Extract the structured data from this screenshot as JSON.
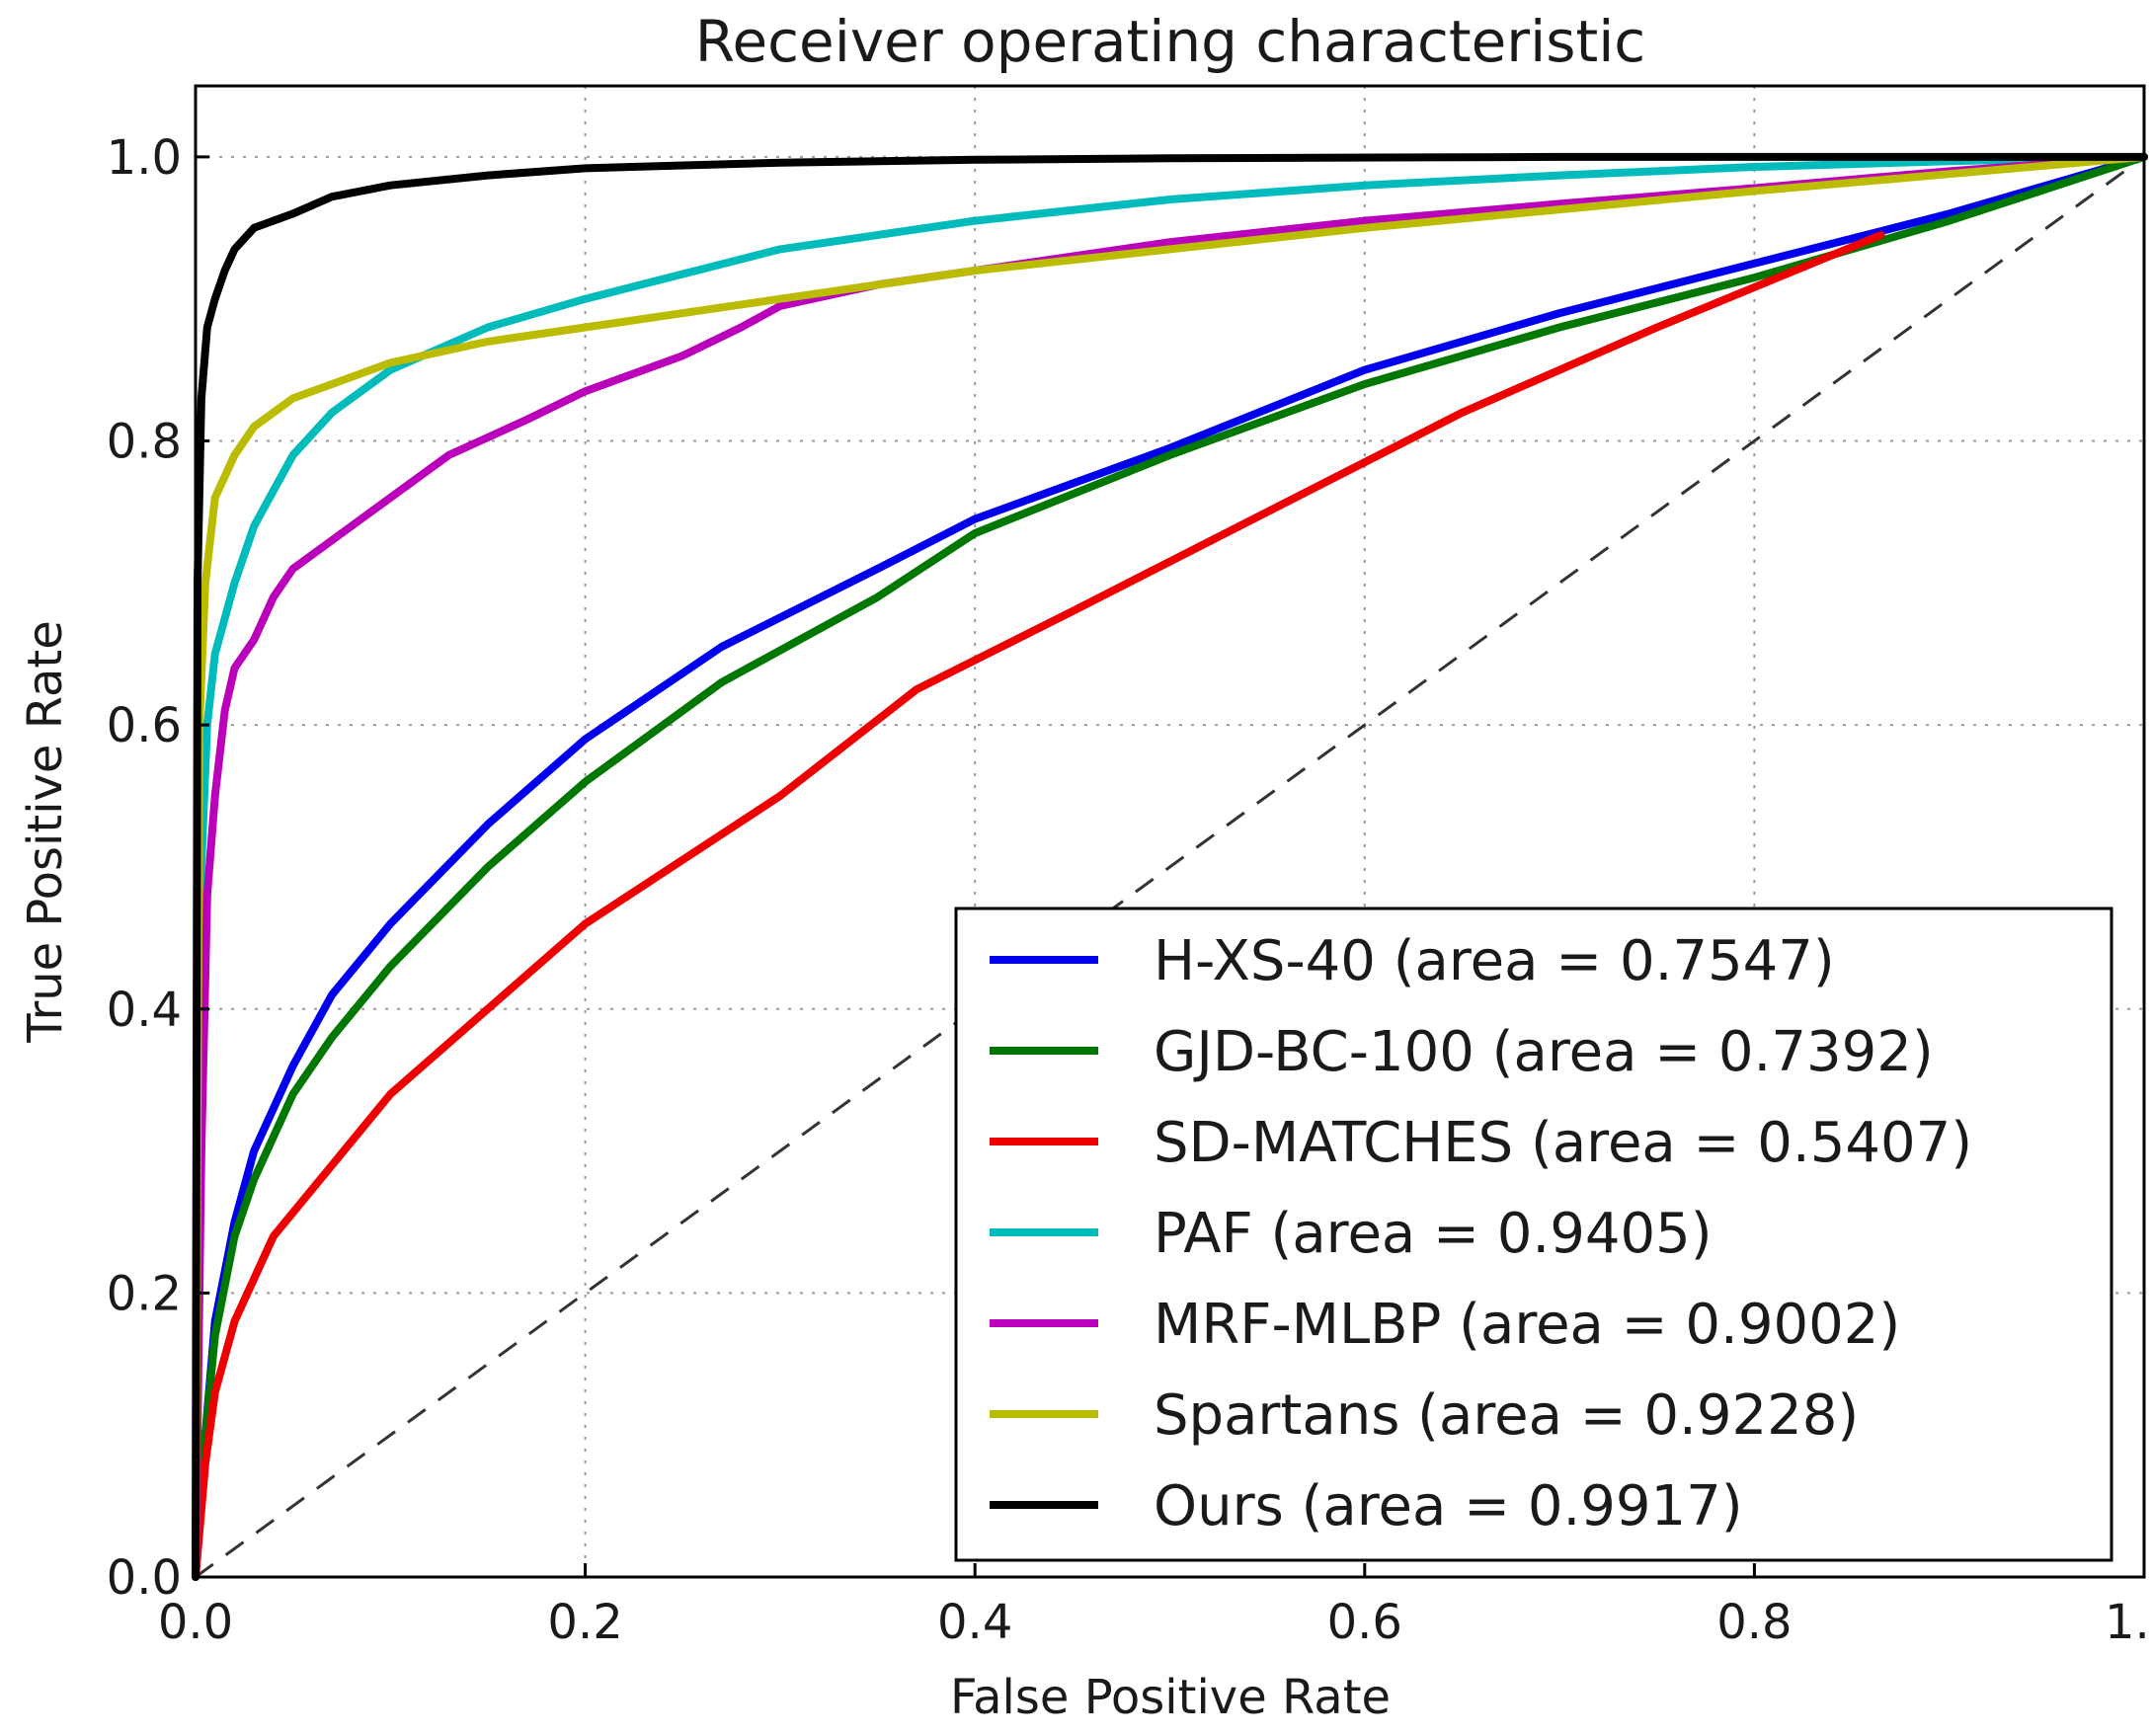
{
  "chart_data": {
    "type": "line",
    "title": "Receiver operating characteristic",
    "xlabel": "False Positive Rate",
    "ylabel": "True Positive Rate",
    "xlim": [
      0,
      1
    ],
    "ylim": [
      0,
      1.05
    ],
    "xticks": [
      0.0,
      0.2,
      0.4,
      0.6,
      0.8,
      1.0
    ],
    "xtick_labels": [
      "0.0",
      "0.2",
      "0.4",
      "0.6",
      "0.8",
      "1."
    ],
    "yticks": [
      0.0,
      0.2,
      0.4,
      0.6,
      0.8,
      1.0
    ],
    "ytick_labels": [
      "0.0",
      "0.2",
      "0.4",
      "0.6",
      "0.8",
      "1.0"
    ],
    "grid": true,
    "legend_position": "lower-right",
    "diagonal_reference": {
      "x": [
        0,
        1
      ],
      "y": [
        0,
        1
      ],
      "style": "dashed",
      "color": "#333333"
    },
    "series": [
      {
        "name": "H-XS-40 (area = 0.7547)",
        "color": "#0000ee",
        "x": [
          0,
          0.005,
          0.01,
          0.02,
          0.03,
          0.05,
          0.07,
          0.1,
          0.15,
          0.2,
          0.27,
          0.35,
          0.4,
          0.5,
          0.6,
          0.7,
          0.8,
          0.9,
          1.0
        ],
        "y": [
          0,
          0.1,
          0.18,
          0.25,
          0.3,
          0.36,
          0.41,
          0.46,
          0.53,
          0.59,
          0.655,
          0.71,
          0.745,
          0.795,
          0.85,
          0.89,
          0.925,
          0.96,
          1.0
        ]
      },
      {
        "name": "GJD-BC-100 (area = 0.7392)",
        "color": "#007700",
        "x": [
          0,
          0.005,
          0.01,
          0.02,
          0.03,
          0.05,
          0.07,
          0.1,
          0.15,
          0.2,
          0.27,
          0.35,
          0.4,
          0.5,
          0.6,
          0.7,
          0.8,
          0.9,
          1.0
        ],
        "y": [
          0,
          0.1,
          0.17,
          0.24,
          0.28,
          0.34,
          0.38,
          0.43,
          0.5,
          0.56,
          0.63,
          0.69,
          0.735,
          0.79,
          0.84,
          0.88,
          0.915,
          0.955,
          1.0
        ]
      },
      {
        "name": "SD-MATCHES (area = 0.5407)",
        "color": "#ee0000",
        "x": [
          0,
          0.005,
          0.01,
          0.02,
          0.04,
          0.07,
          0.1,
          0.15,
          0.2,
          0.3,
          0.37,
          0.45,
          0.55,
          0.65,
          0.75,
          0.865
        ],
        "y": [
          0,
          0.08,
          0.13,
          0.18,
          0.24,
          0.29,
          0.34,
          0.4,
          0.46,
          0.55,
          0.625,
          0.68,
          0.75,
          0.82,
          0.88,
          0.945
        ]
      },
      {
        "name": "PAF (area = 0.9405)",
        "color": "#00bbbb",
        "x": [
          0,
          0.003,
          0.006,
          0.01,
          0.02,
          0.03,
          0.05,
          0.07,
          0.1,
          0.15,
          0.2,
          0.3,
          0.4,
          0.5,
          0.6,
          0.7,
          0.8,
          0.9,
          1.0
        ],
        "y": [
          0,
          0.5,
          0.6,
          0.65,
          0.7,
          0.74,
          0.79,
          0.82,
          0.85,
          0.88,
          0.9,
          0.935,
          0.955,
          0.97,
          0.98,
          0.987,
          0.993,
          0.997,
          1.0
        ]
      },
      {
        "name": "MRF-MLBP (area = 0.9002)",
        "color": "#bb00bb",
        "x": [
          0,
          0.003,
          0.006,
          0.01,
          0.015,
          0.02,
          0.03,
          0.04,
          0.05,
          0.07,
          0.1,
          0.13,
          0.17,
          0.2,
          0.25,
          0.28,
          0.3,
          0.35,
          0.4,
          0.5,
          0.6,
          0.7,
          0.8,
          0.9,
          1.0
        ],
        "y": [
          0,
          0.3,
          0.48,
          0.55,
          0.61,
          0.64,
          0.66,
          0.69,
          0.71,
          0.73,
          0.76,
          0.79,
          0.815,
          0.835,
          0.86,
          0.88,
          0.895,
          0.91,
          0.92,
          0.94,
          0.955,
          0.967,
          0.978,
          0.99,
          1.0
        ]
      },
      {
        "name": "Spartans (area = 0.9228)",
        "color": "#bbbb00",
        "x": [
          0,
          0.002,
          0.005,
          0.01,
          0.02,
          0.03,
          0.05,
          0.07,
          0.1,
          0.15,
          0.2,
          0.3,
          0.4,
          0.5,
          0.6,
          0.7,
          0.8,
          0.9,
          1.0
        ],
        "y": [
          0,
          0.6,
          0.7,
          0.76,
          0.79,
          0.81,
          0.83,
          0.84,
          0.855,
          0.87,
          0.88,
          0.9,
          0.92,
          0.935,
          0.95,
          0.963,
          0.976,
          0.988,
          1.0
        ]
      },
      {
        "name": "Ours (area = 0.9917)",
        "color": "#000000",
        "x": [
          0,
          0.001,
          0.003,
          0.006,
          0.01,
          0.015,
          0.02,
          0.03,
          0.05,
          0.07,
          0.1,
          0.15,
          0.2,
          0.3,
          0.4,
          0.5,
          0.7,
          1.0
        ],
        "y": [
          0,
          0.7,
          0.83,
          0.88,
          0.9,
          0.92,
          0.935,
          0.95,
          0.96,
          0.972,
          0.98,
          0.987,
          0.992,
          0.996,
          0.998,
          0.999,
          1.0,
          1.0
        ]
      }
    ]
  }
}
